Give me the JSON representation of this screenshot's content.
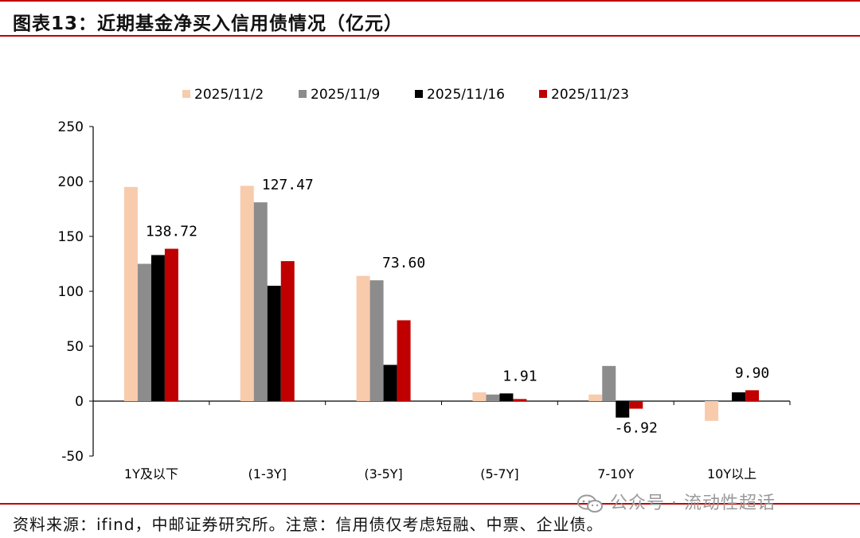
{
  "header": {
    "title": "图表13：近期基金净买入信用债情况（亿元）"
  },
  "footer": {
    "source": "资料来源：ifind，中邮证券研究所。注意：信用债仅考虑短融、中票、企业债。"
  },
  "watermark": {
    "text": "公众号 · 流动性超话",
    "icon": "wechat-icon"
  },
  "colors": {
    "rule": "#c00000"
  },
  "chart_data": {
    "type": "bar",
    "categories": [
      "1Y及以下",
      "(1-3Y]",
      "(3-5Y]",
      "(5-7Y]",
      "7-10Y",
      "10Y以上"
    ],
    "series": [
      {
        "name": "2025/11/2",
        "color": "#f8cbad",
        "values": [
          195,
          196,
          114,
          8,
          6,
          -18
        ]
      },
      {
        "name": "2025/11/9",
        "color": "#8c8c8c",
        "values": [
          125,
          181,
          110,
          6,
          32,
          0
        ]
      },
      {
        "name": "2025/11/16",
        "color": "#000000",
        "values": [
          133,
          105,
          33,
          7,
          -15,
          8
        ]
      },
      {
        "name": "2025/11/23",
        "color": "#c00000",
        "values": [
          138.72,
          127.47,
          73.6,
          1.91,
          -6.92,
          9.9
        ]
      }
    ],
    "data_labels": [
      "138.72",
      "127.47",
      "73.60",
      "1.91",
      "-6.92",
      "9.90"
    ],
    "y_ticks": [
      "250",
      "200",
      "150",
      "100",
      "50",
      "0",
      "-50"
    ],
    "ylim": [
      -50,
      250
    ],
    "legend_position": "top",
    "grid": false
  }
}
